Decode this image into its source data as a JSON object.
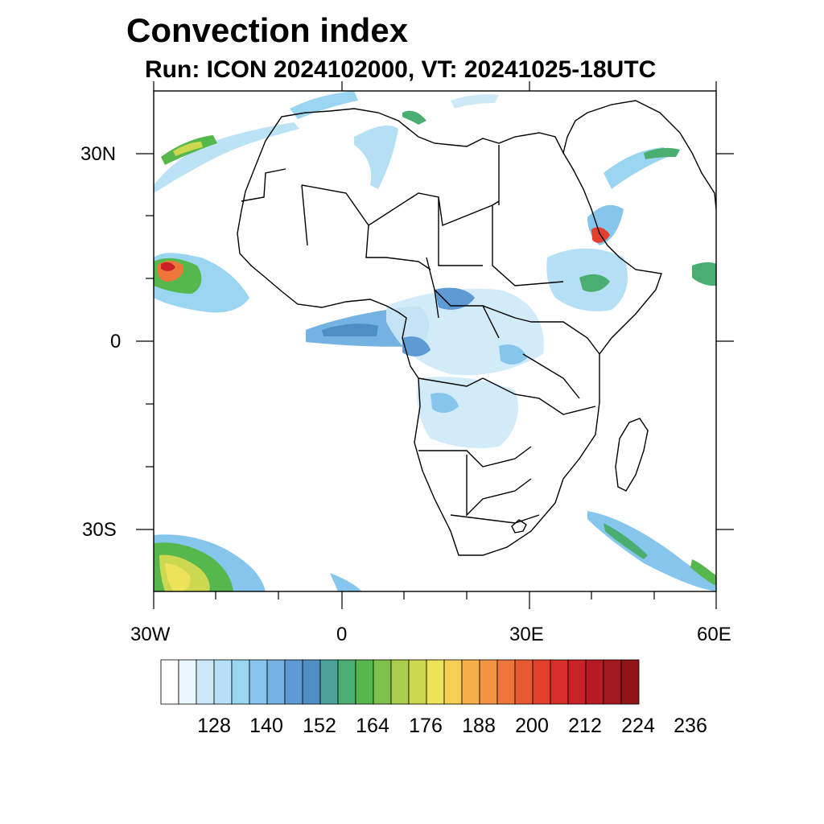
{
  "title": "Convection index",
  "subtitle": "Run: ICON 2024102000,  VT: 20241025-18UTC",
  "map": {
    "projection": "equirectangular",
    "lon_range": [
      -30,
      60
    ],
    "lat_range": [
      -40,
      40
    ],
    "x_ticks": [
      "30W",
      "0",
      "30E",
      "60E"
    ],
    "y_ticks": [
      "30N",
      "0",
      "30S"
    ],
    "frame_color": "#000000",
    "land_outline_color": "#000000"
  },
  "colorbar": {
    "colors": [
      "#ffffff",
      "#eaf6fd",
      "#cde9f8",
      "#b5dff5",
      "#9ad5f2",
      "#86c6ec",
      "#74b2e2",
      "#5e9bd5",
      "#4f8ec4",
      "#4aa39a",
      "#4aae70",
      "#56b84c",
      "#7fc04a",
      "#a8ce4c",
      "#cbd850",
      "#ece35a",
      "#f6cd55",
      "#f6b04a",
      "#f39443",
      "#ee763a",
      "#e85a31",
      "#e1412c",
      "#d72d2b",
      "#c92128",
      "#b61b25",
      "#a4191f",
      "#8f1518"
    ],
    "labels": [
      "128",
      "140",
      "152",
      "164",
      "176",
      "188",
      "200",
      "212",
      "224",
      "236"
    ]
  }
}
